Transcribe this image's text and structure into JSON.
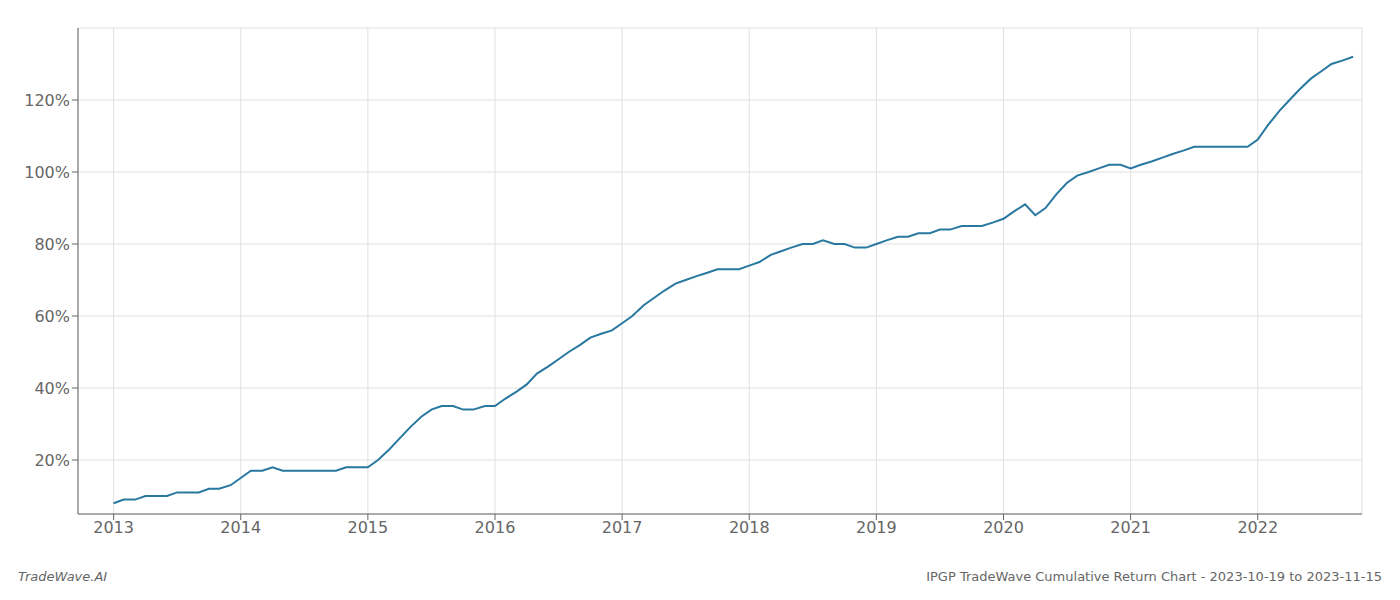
{
  "chart_data": {
    "type": "line",
    "title": "IPGP TradeWave Cumulative Return Chart - 2023-10-19 to 2023-11-15",
    "annotations": [
      "TradeWave.AI"
    ],
    "color": "#2878a0",
    "grid": true,
    "x": [
      2013.0,
      2013.08,
      2013.17,
      2013.25,
      2013.33,
      2013.42,
      2013.5,
      2013.58,
      2013.67,
      2013.75,
      2013.83,
      2013.92,
      2014.0,
      2014.08,
      2014.17,
      2014.25,
      2014.33,
      2014.42,
      2014.5,
      2014.58,
      2014.67,
      2014.75,
      2014.83,
      2014.92,
      2015.0,
      2015.08,
      2015.17,
      2015.25,
      2015.33,
      2015.42,
      2015.5,
      2015.58,
      2015.67,
      2015.75,
      2015.83,
      2015.92,
      2016.0,
      2016.08,
      2016.17,
      2016.25,
      2016.33,
      2016.42,
      2016.5,
      2016.58,
      2016.67,
      2016.75,
      2016.83,
      2016.92,
      2017.0,
      2017.08,
      2017.17,
      2017.25,
      2017.33,
      2017.42,
      2017.5,
      2017.58,
      2017.67,
      2017.75,
      2017.83,
      2017.92,
      2018.0,
      2018.08,
      2018.17,
      2018.25,
      2018.33,
      2018.42,
      2018.5,
      2018.58,
      2018.67,
      2018.75,
      2018.83,
      2018.92,
      2019.0,
      2019.08,
      2019.17,
      2019.25,
      2019.33,
      2019.42,
      2019.5,
      2019.58,
      2019.67,
      2019.75,
      2019.83,
      2019.92,
      2020.0,
      2020.08,
      2020.17,
      2020.25,
      2020.33,
      2020.42,
      2020.5,
      2020.58,
      2020.67,
      2020.75,
      2020.83,
      2020.92,
      2021.0,
      2021.08,
      2021.17,
      2021.25,
      2021.33,
      2021.42,
      2021.5,
      2021.58,
      2021.67,
      2021.75,
      2021.83,
      2021.92,
      2022.0,
      2022.08,
      2022.17,
      2022.25,
      2022.33,
      2022.42,
      2022.5,
      2022.58,
      2022.67,
      2022.75
    ],
    "values": [
      8,
      9,
      9,
      10,
      10,
      10,
      11,
      11,
      11,
      12,
      12,
      13,
      15,
      17,
      17,
      18,
      17,
      17,
      17,
      17,
      17,
      17,
      18,
      18,
      18,
      20,
      23,
      26,
      29,
      32,
      34,
      35,
      35,
      34,
      34,
      35,
      35,
      37,
      39,
      41,
      44,
      46,
      48,
      50,
      52,
      54,
      55,
      56,
      58,
      60,
      63,
      65,
      67,
      69,
      70,
      71,
      72,
      73,
      73,
      73,
      74,
      75,
      77,
      78,
      79,
      80,
      80,
      81,
      80,
      80,
      79,
      79,
      80,
      81,
      82,
      82,
      83,
      83,
      84,
      84,
      85,
      85,
      85,
      86,
      87,
      89,
      91,
      88,
      90,
      94,
      97,
      99,
      100,
      101,
      102,
      102,
      101,
      102,
      103,
      104,
      105,
      106,
      107,
      107,
      107,
      107,
      107,
      107,
      109,
      113,
      117,
      120,
      123,
      126,
      128,
      130,
      131,
      132
    ],
    "xlim": [
      2012.72,
      2022.82
    ],
    "xticks": [
      2013,
      2014,
      2015,
      2016,
      2017,
      2018,
      2019,
      2020,
      2021,
      2022
    ],
    "ylim": [
      5,
      140
    ],
    "yticks": [
      {
        "value": 20,
        "label": "20%"
      },
      {
        "value": 40,
        "label": "40%"
      },
      {
        "value": 60,
        "label": "60%"
      },
      {
        "value": 80,
        "label": "80%"
      },
      {
        "value": 100,
        "label": "100%"
      },
      {
        "value": 120,
        "label": "120%"
      }
    ]
  }
}
